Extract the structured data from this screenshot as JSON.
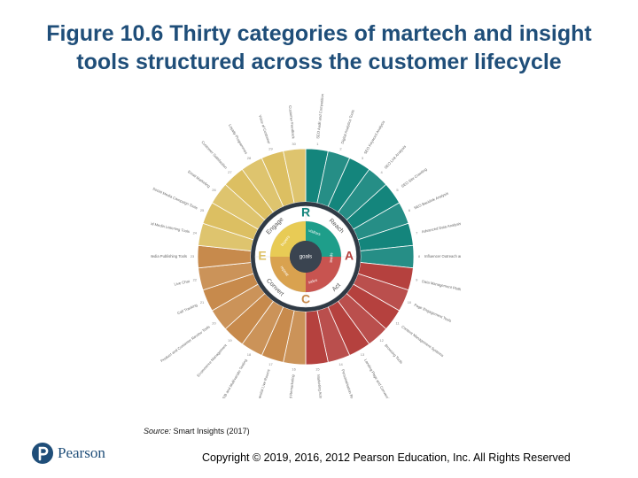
{
  "header": {
    "title_line1": "Figure 10.6 Thirty categories of martech and insight",
    "title_line2": "tools structured across the customer lifecycle"
  },
  "wheel": {
    "center_label": "goals",
    "quadrants": [
      {
        "letter": "R",
        "name": "Reach",
        "color": "#14857c",
        "ring_color": "#1e9e8a"
      },
      {
        "letter": "A",
        "name": "Act",
        "color": "#b5413e",
        "ring_color": "#c85450"
      },
      {
        "letter": "C",
        "name": "Convert",
        "color": "#c78a4c",
        "ring_color": "#d9a24f"
      },
      {
        "letter": "E",
        "name": "Engage",
        "color": "#dcbf62",
        "ring_color": "#e8cb55"
      }
    ],
    "inner_words": [
      "visitors",
      "leads",
      "sales",
      "repeat",
      "buyers"
    ],
    "segment_labels": [
      "SEO Audit and Competition",
      "Digital Analytics Tools",
      "SEO Keyword Analysis",
      "SEO Link Analysis",
      "SEO Site Crawling",
      "SEO Backlink Analysis",
      "Advanced Data Analysis Tools",
      "Influencer Outreach and Management",
      "Data Management Platforms and Audience Targeting",
      "Page Engagement Tools",
      "Content Management Systems",
      "Browsing Tools",
      "Landing Page and Conversion Tools",
      "Personalisation Recommendations",
      "Marketing Automation",
      "Retargeting and Remarketing",
      "Sequential Live Rooms",
      "A/B and Multivariate Testing",
      "Ecommerce Management",
      "Product and Customer Review Tools",
      "Call Tracking",
      "Live Chat",
      "Social Media Publishing Tools",
      "Social Media Listening Tools",
      "Social Media Campaign Tools",
      "Email Marketing",
      "Customer Satisfaction",
      "Loyalty Programmes",
      "Voice of Customer",
      "Customer Feedback"
    ]
  },
  "footer": {
    "source_prefix": "Source:",
    "source_text": " Smart Insights (2017)",
    "copyright": "Copyright © 2019, 2016, 2012 Pearson Education, Inc. All Rights Reserved",
    "logo_text": "Pearson"
  }
}
